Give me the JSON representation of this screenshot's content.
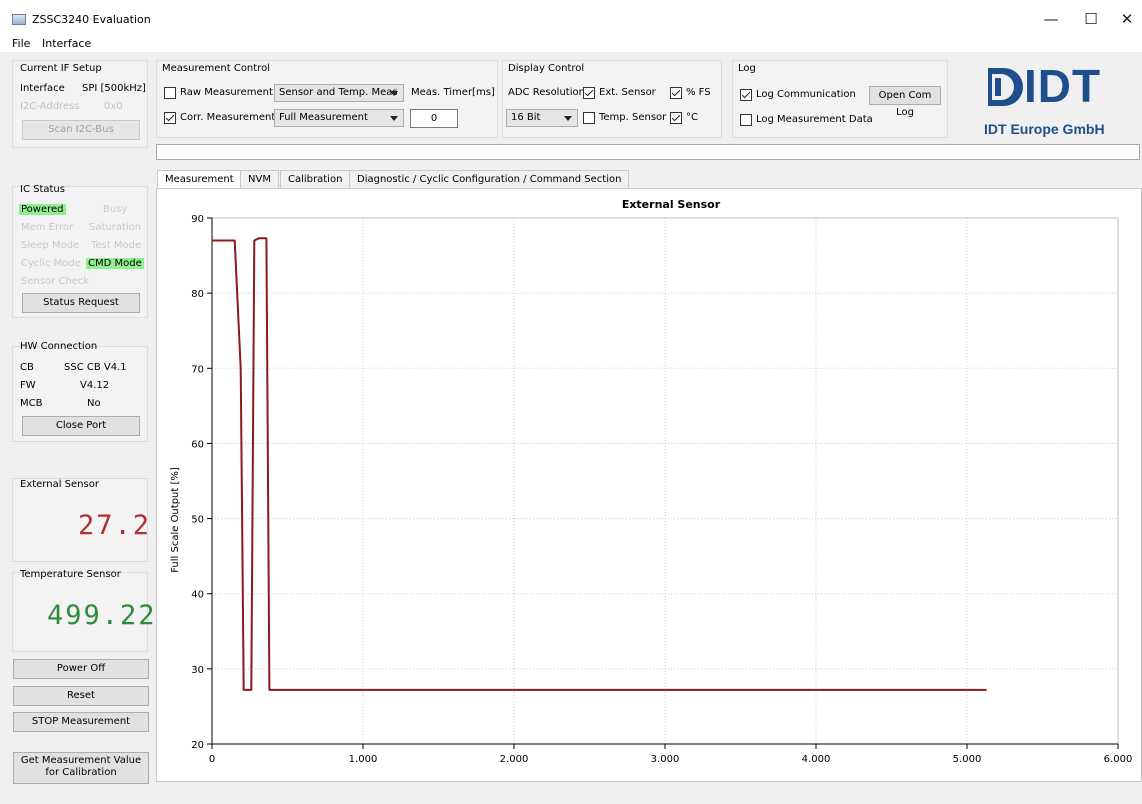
{
  "window": {
    "title": "ZSSC3240 Evaluation",
    "minimize": "—",
    "maximize": "☐",
    "close": "✕"
  },
  "menu": [
    "File",
    "Interface"
  ],
  "if_setup": {
    "title": "Current IF Setup",
    "interface_label": "Interface",
    "interface_value": "SPI [500kHz]",
    "i2c_label": "I2C-Address",
    "i2c_value": "0x0",
    "scan_button": "Scan I2C-Bus"
  },
  "measurement_control": {
    "title": "Measurement Control",
    "raw_label": "Raw Measurement",
    "raw_checked": false,
    "raw_mode": "Sensor and Temp. Meas",
    "timer_label": "Meas. Timer[ms]",
    "corr_label": "Corr. Measurement",
    "corr_checked": true,
    "corr_mode": "Full Measurement",
    "timer_value": "0"
  },
  "display_control": {
    "title": "Display Control",
    "adc_label": "ADC Resolution",
    "adc_value": "16 Bit",
    "ext_sensor_label": "Ext. Sensor",
    "ext_sensor_checked": true,
    "pct_fs_label": "% FS",
    "pct_fs_checked": true,
    "temp_sensor_label": "Temp. Sensor",
    "temp_sensor_checked": false,
    "deg_c_label": "°C",
    "deg_c_checked": true
  },
  "log": {
    "title": "Log",
    "comm_label": "Log Communication",
    "comm_checked": true,
    "open_button": "Open Com Log",
    "meas_label": "Log Measurement Data",
    "meas_checked": false
  },
  "logo": {
    "text": "IDT",
    "company": "IDT Europe GmbH",
    "color": "#1f4e8c"
  },
  "ic_status": {
    "title": "IC Status",
    "items": [
      {
        "label": "Powered",
        "on": true
      },
      {
        "label": "Busy",
        "on": false
      },
      {
        "label": "Mem Error",
        "on": false
      },
      {
        "label": "Saturation",
        "on": false
      },
      {
        "label": "Sleep Mode",
        "on": false
      },
      {
        "label": "Test Mode",
        "on": false
      },
      {
        "label": "Cyclic Mode",
        "on": false
      },
      {
        "label": "CMD Mode",
        "on": true
      },
      {
        "label": "Sensor Check",
        "on": false
      }
    ],
    "status_button": "Status Request"
  },
  "hw": {
    "title": "HW Connection",
    "cb_label": "CB",
    "cb_value": "SSC CB V4.1",
    "fw_label": "FW",
    "fw_value": "V4.12",
    "mcb_label": "MCB",
    "mcb_value": "No",
    "close_button": "Close Port"
  },
  "ext_sensor": {
    "title": "External Sensor",
    "value": "27.2",
    "color": "#b03030"
  },
  "temp_sensor": {
    "title": "Temperature Sensor",
    "value": "499.22",
    "color": "#2e8b3a"
  },
  "buttons": {
    "power_off": "Power Off",
    "reset": "Reset",
    "stop": "STOP Measurement",
    "get_value_1": "Get Measurement Value",
    "get_value_2": "for Calibration"
  },
  "tabs": [
    "Measurement",
    "NVM",
    "Calibration",
    "Diagnostic / Cyclic Configuration / Command Section"
  ],
  "chart_data": {
    "type": "line",
    "title": "External Sensor",
    "xlabel": "",
    "ylabel": "Full Scale Output [%]",
    "xlim": [
      0,
      6000
    ],
    "ylim": [
      20,
      90
    ],
    "x_ticks": [
      0,
      1000,
      2000,
      3000,
      4000,
      5000,
      6000
    ],
    "x_tick_labels": [
      "0",
      "1.000",
      "2.000",
      "3.000",
      "4.000",
      "5.000",
      "6.000"
    ],
    "y_ticks": [
      20,
      30,
      40,
      50,
      60,
      70,
      80,
      90
    ],
    "grid": true,
    "line_color": "#8b1a1a",
    "series": [
      {
        "x": [
          0,
          100,
          150,
          190,
          210,
          260,
          280,
          310,
          360,
          380,
          400,
          5130
        ],
        "y": [
          87,
          87,
          87,
          70,
          27.2,
          27.2,
          87,
          87.3,
          87.3,
          27.2,
          27.2,
          27.2
        ]
      }
    ]
  }
}
